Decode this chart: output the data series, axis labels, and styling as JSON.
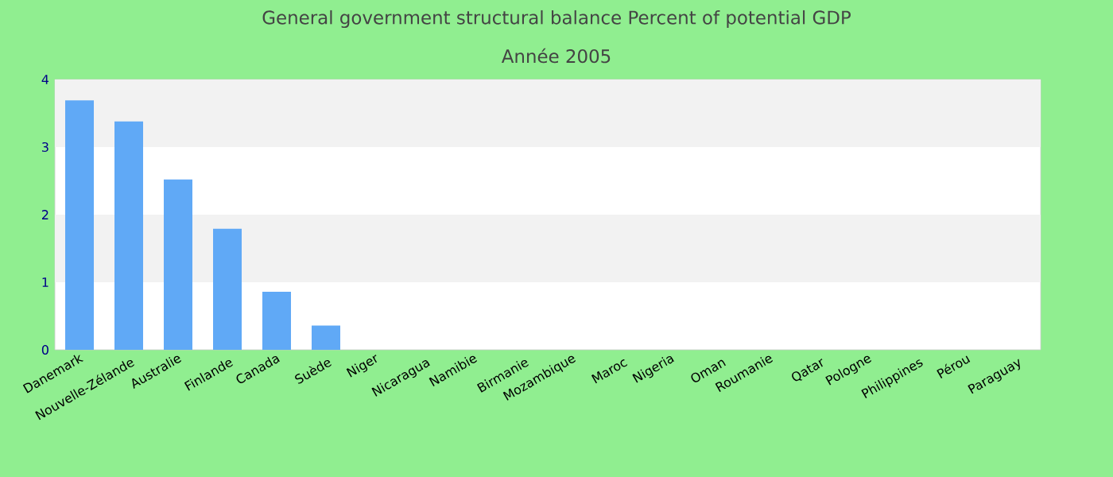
{
  "chart_data": {
    "type": "bar",
    "title": "General government structural balance  Percent of potential GDP",
    "subtitle": "Année 2005",
    "categories": [
      "Danemark",
      "Nouvelle-Zélande",
      "Australie",
      "Finlande",
      "Canada",
      "Suède",
      "Niger",
      "Nicaragua",
      "Namibie",
      "Birmanie",
      "Mozambique",
      "Maroc",
      "Nigeria",
      "Oman",
      "Roumanie",
      "Qatar",
      "Pologne",
      "Philippines",
      "Pérou",
      "Paraguay"
    ],
    "values": [
      3.69,
      3.38,
      2.52,
      1.79,
      0.86,
      0.36,
      null,
      null,
      null,
      null,
      null,
      null,
      null,
      null,
      null,
      null,
      null,
      null,
      null,
      null
    ],
    "color": "#60a9f6",
    "ylim": [
      0,
      4
    ],
    "yticks": [
      0,
      1,
      2,
      3,
      4
    ]
  }
}
